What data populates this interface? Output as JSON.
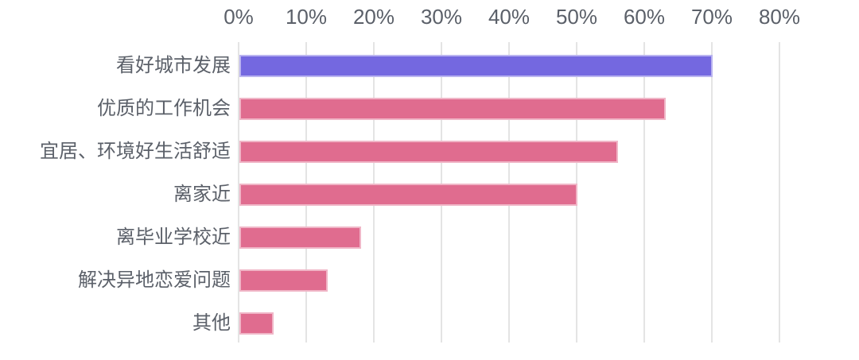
{
  "chart_data": {
    "type": "bar",
    "orientation": "horizontal",
    "title": "",
    "categories": [
      "看好城市发展",
      "优质的工作机会",
      "宜居、环境好生活舒适",
      "离家近",
      "离毕业学校近",
      "解决异地恋爱问题",
      "其他"
    ],
    "values": [
      70,
      63,
      56,
      50,
      18,
      13,
      5
    ],
    "x_ticks": [
      "0%",
      "10%",
      "20%",
      "30%",
      "40%",
      "50%",
      "60%",
      "70%",
      "80%"
    ],
    "xlim": [
      0,
      80
    ],
    "grid": "vertical-gridlines-only",
    "legend": "none",
    "axis_position": "top",
    "highlight_index": 0,
    "colors": {
      "highlight_bar": "#7468E0",
      "default_bar": "#E06C8F",
      "gridline": "#E4E4E4",
      "text": "#5B6069"
    }
  }
}
